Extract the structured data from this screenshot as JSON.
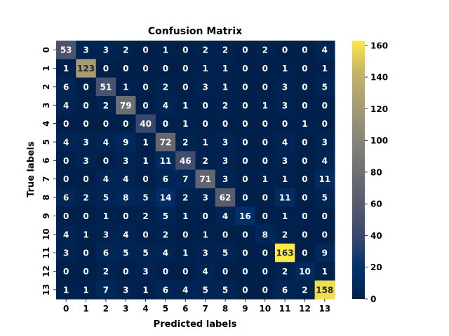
{
  "chart_data": {
    "type": "heatmap",
    "title": "Confusion Matrix",
    "xlabel": "Predicted labels",
    "ylabel": "True labels",
    "x_tick_labels": [
      "0",
      "1",
      "2",
      "3",
      "4",
      "5",
      "6",
      "7",
      "8",
      "9",
      "10",
      "11",
      "12",
      "13"
    ],
    "y_tick_labels": [
      "0",
      "1",
      "2",
      "3",
      "4",
      "5",
      "6",
      "7",
      "8",
      "9",
      "10",
      "11",
      "12",
      "13"
    ],
    "matrix": [
      [
        53,
        3,
        3,
        2,
        0,
        1,
        0,
        2,
        2,
        0,
        2,
        0,
        0,
        4
      ],
      [
        1,
        123,
        0,
        0,
        0,
        0,
        0,
        1,
        1,
        0,
        0,
        1,
        0,
        1
      ],
      [
        6,
        0,
        51,
        1,
        0,
        2,
        0,
        3,
        1,
        0,
        0,
        3,
        0,
        5
      ],
      [
        4,
        0,
        2,
        79,
        0,
        4,
        1,
        0,
        2,
        0,
        1,
        3,
        0,
        0
      ],
      [
        0,
        0,
        0,
        0,
        40,
        0,
        1,
        0,
        0,
        0,
        0,
        0,
        1,
        0
      ],
      [
        4,
        3,
        4,
        9,
        1,
        72,
        2,
        1,
        3,
        0,
        0,
        4,
        0,
        3
      ],
      [
        0,
        3,
        0,
        3,
        1,
        11,
        46,
        2,
        3,
        0,
        0,
        3,
        0,
        4
      ],
      [
        0,
        0,
        4,
        4,
        0,
        6,
        7,
        71,
        3,
        0,
        1,
        1,
        0,
        11
      ],
      [
        6,
        2,
        5,
        8,
        5,
        14,
        2,
        3,
        62,
        0,
        0,
        11,
        0,
        5
      ],
      [
        0,
        0,
        1,
        0,
        2,
        5,
        1,
        0,
        4,
        16,
        0,
        1,
        0,
        0
      ],
      [
        4,
        1,
        3,
        4,
        0,
        2,
        0,
        1,
        0,
        0,
        8,
        2,
        0,
        0
      ],
      [
        3,
        0,
        6,
        5,
        5,
        4,
        1,
        3,
        5,
        0,
        0,
        163,
        0,
        9
      ],
      [
        0,
        0,
        2,
        0,
        3,
        0,
        0,
        4,
        0,
        0,
        0,
        2,
        10,
        1
      ],
      [
        1,
        1,
        7,
        3,
        1,
        6,
        4,
        5,
        5,
        0,
        0,
        6,
        2,
        158
      ]
    ],
    "colormap": "cividis",
    "colorbar": {
      "ticks": [
        0,
        20,
        40,
        60,
        80,
        100,
        120,
        140,
        160
      ],
      "vmin": 0,
      "vmax": 163
    },
    "annotation_colors": {
      "light": "#ffffff",
      "dark": "#262626"
    }
  }
}
